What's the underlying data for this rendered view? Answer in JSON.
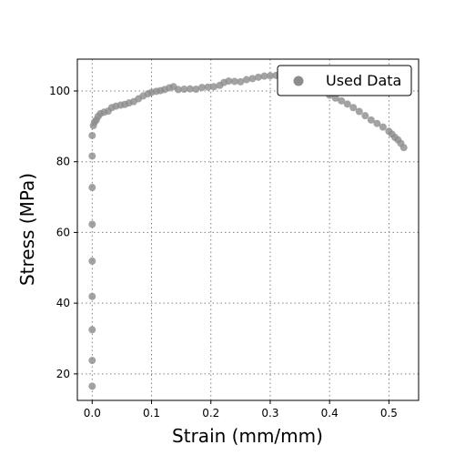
{
  "chart_data": {
    "type": "scatter",
    "xlabel": "Strain (mm/mm)",
    "ylabel": "Stress (MPa)",
    "xlim": [
      -0.025,
      0.55
    ],
    "ylim": [
      12.5,
      109
    ],
    "xticks": [
      0.0,
      0.1,
      0.2,
      0.3,
      0.4,
      0.5
    ],
    "xtick_labels": [
      "0.0",
      "0.1",
      "0.2",
      "0.3",
      "0.4",
      "0.5"
    ],
    "yticks": [
      20,
      40,
      60,
      80,
      100
    ],
    "ytick_labels": [
      "20",
      "40",
      "60",
      "80",
      "100"
    ],
    "grid": true,
    "legend_position": "top-right",
    "marker_color": "#8c8c8c",
    "series": [
      {
        "name": "Used Data",
        "points": [
          [
            0.0,
            16.5
          ],
          [
            0.0,
            23.8
          ],
          [
            0.0,
            32.5
          ],
          [
            0.0,
            41.9
          ],
          [
            0.0,
            51.9
          ],
          [
            0.0,
            62.3
          ],
          [
            0.0,
            72.7
          ],
          [
            0.0,
            81.6
          ],
          [
            0.0,
            87.4
          ],
          [
            0.002,
            90.2
          ],
          [
            0.004,
            91.2
          ],
          [
            0.007,
            91.8
          ],
          [
            0.01,
            92.8
          ],
          [
            0.014,
            93.6
          ],
          [
            0.02,
            94.0
          ],
          [
            0.027,
            94.3
          ],
          [
            0.033,
            95.3
          ],
          [
            0.04,
            95.7
          ],
          [
            0.048,
            96.0
          ],
          [
            0.055,
            96.2
          ],
          [
            0.062,
            96.6
          ],
          [
            0.07,
            97.0
          ],
          [
            0.078,
            97.8
          ],
          [
            0.086,
            98.6
          ],
          [
            0.094,
            99.2
          ],
          [
            0.1,
            99.6
          ],
          [
            0.108,
            99.9
          ],
          [
            0.115,
            100.1
          ],
          [
            0.122,
            100.4
          ],
          [
            0.13,
            100.9
          ],
          [
            0.137,
            101.2
          ],
          [
            0.145,
            100.4
          ],
          [
            0.155,
            100.5
          ],
          [
            0.165,
            100.6
          ],
          [
            0.175,
            100.5
          ],
          [
            0.185,
            101.0
          ],
          [
            0.195,
            101.1
          ],
          [
            0.205,
            101.2
          ],
          [
            0.215,
            101.6
          ],
          [
            0.222,
            102.4
          ],
          [
            0.23,
            102.8
          ],
          [
            0.24,
            102.7
          ],
          [
            0.25,
            102.6
          ],
          [
            0.26,
            103.2
          ],
          [
            0.27,
            103.5
          ],
          [
            0.28,
            103.9
          ],
          [
            0.29,
            104.2
          ],
          [
            0.3,
            104.3
          ],
          [
            0.31,
            104.4
          ],
          [
            0.32,
            104.2
          ],
          [
            0.33,
            103.8
          ],
          [
            0.34,
            103.2
          ],
          [
            0.35,
            102.6
          ],
          [
            0.36,
            101.9
          ],
          [
            0.37,
            101.1
          ],
          [
            0.38,
            100.4
          ],
          [
            0.39,
            99.6
          ],
          [
            0.4,
            98.8
          ],
          [
            0.41,
            98.0
          ],
          [
            0.42,
            97.2
          ],
          [
            0.43,
            96.3
          ],
          [
            0.44,
            95.3
          ],
          [
            0.45,
            94.2
          ],
          [
            0.46,
            93.0
          ],
          [
            0.47,
            91.8
          ],
          [
            0.48,
            90.8
          ],
          [
            0.49,
            89.8
          ],
          [
            0.5,
            88.6
          ],
          [
            0.505,
            87.8
          ],
          [
            0.51,
            86.9
          ],
          [
            0.515,
            86.2
          ],
          [
            0.52,
            85.2
          ],
          [
            0.525,
            84.0
          ]
        ]
      }
    ]
  }
}
